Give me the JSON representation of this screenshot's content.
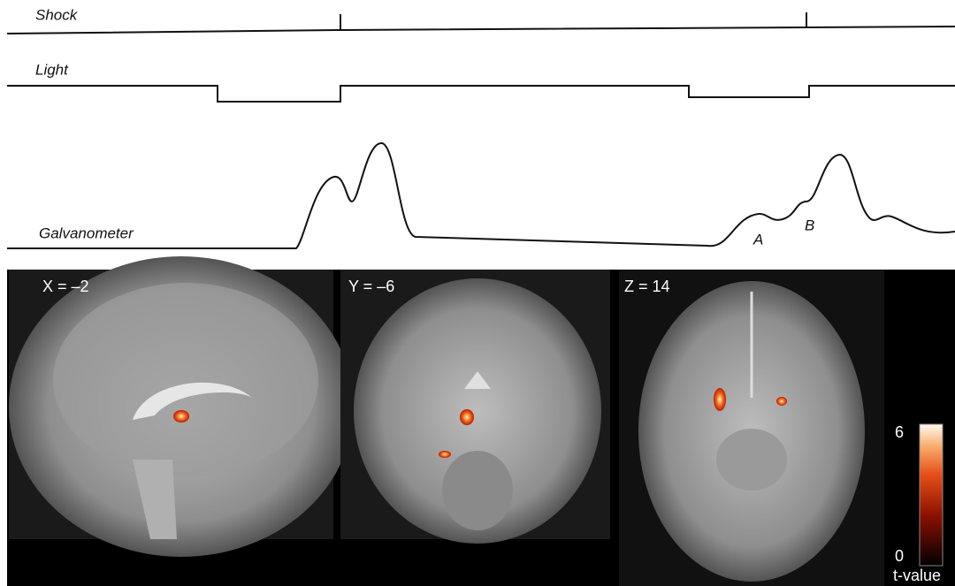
{
  "traces": {
    "shock": "Shock",
    "light": "Light",
    "galvanometer": "Galvanometer",
    "marker_a": "A",
    "marker_b": "B"
  },
  "panels": [
    {
      "label": "X = –2"
    },
    {
      "label": "Y = –6"
    },
    {
      "label": "Z = 14"
    }
  ],
  "colorbar": {
    "max": 6,
    "min": 0,
    "label": "t-value"
  }
}
